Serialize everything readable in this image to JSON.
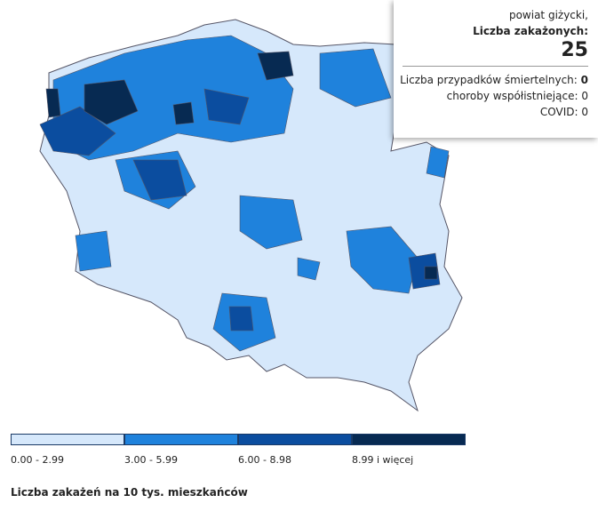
{
  "tooltip": {
    "region": "powiat giżycki,",
    "cases_label": "Liczba zakażonych:",
    "cases": 25,
    "deaths_label": "Liczba przypadków śmiertelnych:",
    "deaths": 0,
    "comorbid_label": "choroby współistniejące:",
    "comorbid": 0,
    "covid_label": "COVID:",
    "covid": 0
  },
  "legend": {
    "items": [
      {
        "label": "0.00 - 2.99",
        "color": "#d6e8fb"
      },
      {
        "label": "3.00 - 5.99",
        "color": "#1f82dc"
      },
      {
        "label": "6.00 - 8.98",
        "color": "#0b4d9f"
      },
      {
        "label": "8.99 i więcej",
        "color": "#072a52"
      }
    ],
    "title": "Liczba zakażeń na 10 tys. mieszkańców"
  }
}
